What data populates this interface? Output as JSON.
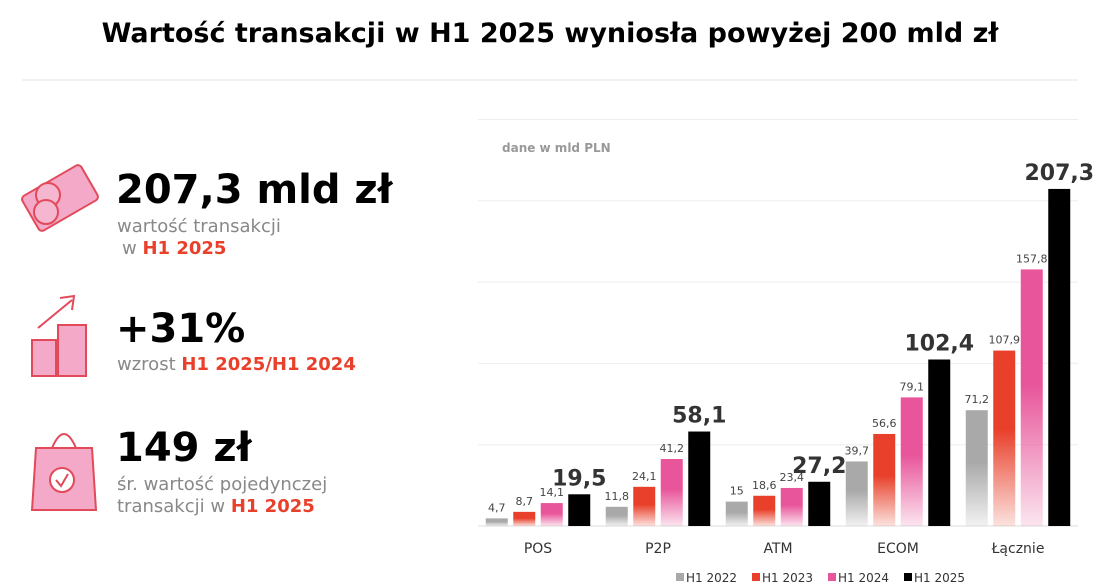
{
  "title": "Wartość transakcji w H1 2025 wyniosła powyżej 200 mld zł",
  "stats": [
    {
      "value": "207,3 mld zł",
      "lines": [
        "wartość transakcji",
        "w"
      ],
      "highlight": "H1 2025"
    },
    {
      "value": "+31%",
      "lines": [
        "wzrost"
      ],
      "highlight": "H1 2025/H1 2024"
    },
    {
      "value": "149 zł",
      "lines": [
        "śr. wartość pojedynczej",
        "transakcji w"
      ],
      "highlight": "H1 2025"
    }
  ],
  "chart_data": {
    "type": "bar",
    "subtitle": "dane w mld PLN",
    "categories": [
      "POS",
      "P2P",
      "ATM",
      "ECOM",
      "Łącznie"
    ],
    "series": [
      {
        "name": "H1 2022",
        "color": "#a9a9a9",
        "values": [
          4.7,
          11.8,
          15,
          39.7,
          71.2
        ],
        "value_labels": [
          "4,7",
          "11,8",
          "15",
          "39,7",
          "71,2"
        ]
      },
      {
        "name": "H1 2023",
        "color": "#e8402a",
        "values": [
          8.7,
          24.1,
          18.6,
          56.6,
          107.9
        ],
        "value_labels": [
          "8,7",
          "24,1",
          "18,6",
          "56,6",
          "107,9"
        ]
      },
      {
        "name": "H1 2024",
        "color": "#e8559a",
        "values": [
          14.1,
          41.2,
          23.4,
          79.1,
          157.8
        ],
        "value_labels": [
          "14,1",
          "41,2",
          "23,4",
          "79,1",
          "157,8"
        ]
      },
      {
        "name": "H1 2025",
        "color": "#000000",
        "values": [
          19.5,
          58.1,
          27.2,
          102.4,
          207.3
        ],
        "value_labels": [
          "19,5",
          "58,1",
          "27,2",
          "102,4",
          "207,3"
        ]
      }
    ],
    "ylim": [
      0,
      250
    ],
    "yticks": [
      0,
      50,
      100,
      150,
      200,
      250
    ],
    "grid": true
  }
}
